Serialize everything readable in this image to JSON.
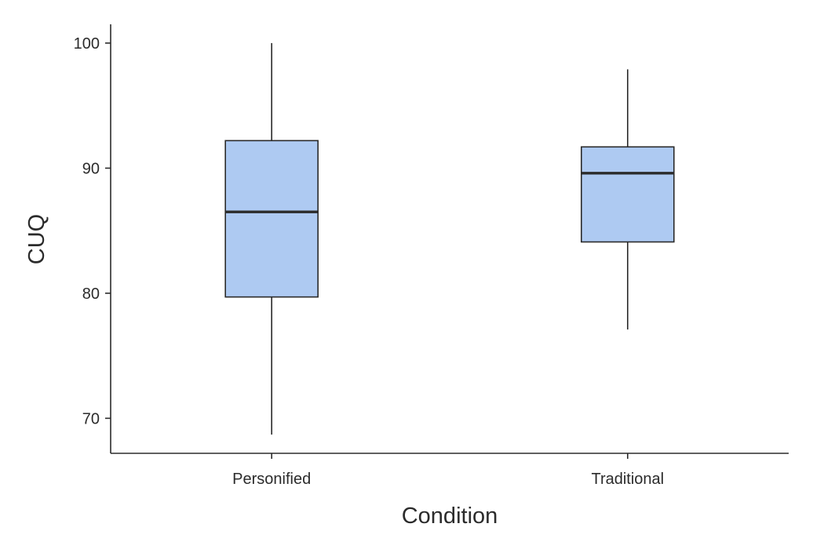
{
  "chart_data": {
    "type": "box",
    "xlabel": "Condition",
    "ylabel": "CUQ",
    "ylim": [
      67.2,
      101.5
    ],
    "yticks": [
      70,
      80,
      90,
      100
    ],
    "categories": [
      "Personified",
      "Traditional"
    ],
    "boxes": [
      {
        "category": "Personified",
        "whisker_low": 68.7,
        "q1": 79.7,
        "median": 86.5,
        "q3": 92.2,
        "whisker_high": 100
      },
      {
        "category": "Traditional",
        "whisker_low": 77.1,
        "q1": 84.1,
        "median": 89.6,
        "q3": 91.7,
        "whisker_high": 97.9
      }
    ],
    "fill_color": "#aecaf2",
    "line_color": "#2b2b2b",
    "grid": false,
    "legend": "none"
  }
}
